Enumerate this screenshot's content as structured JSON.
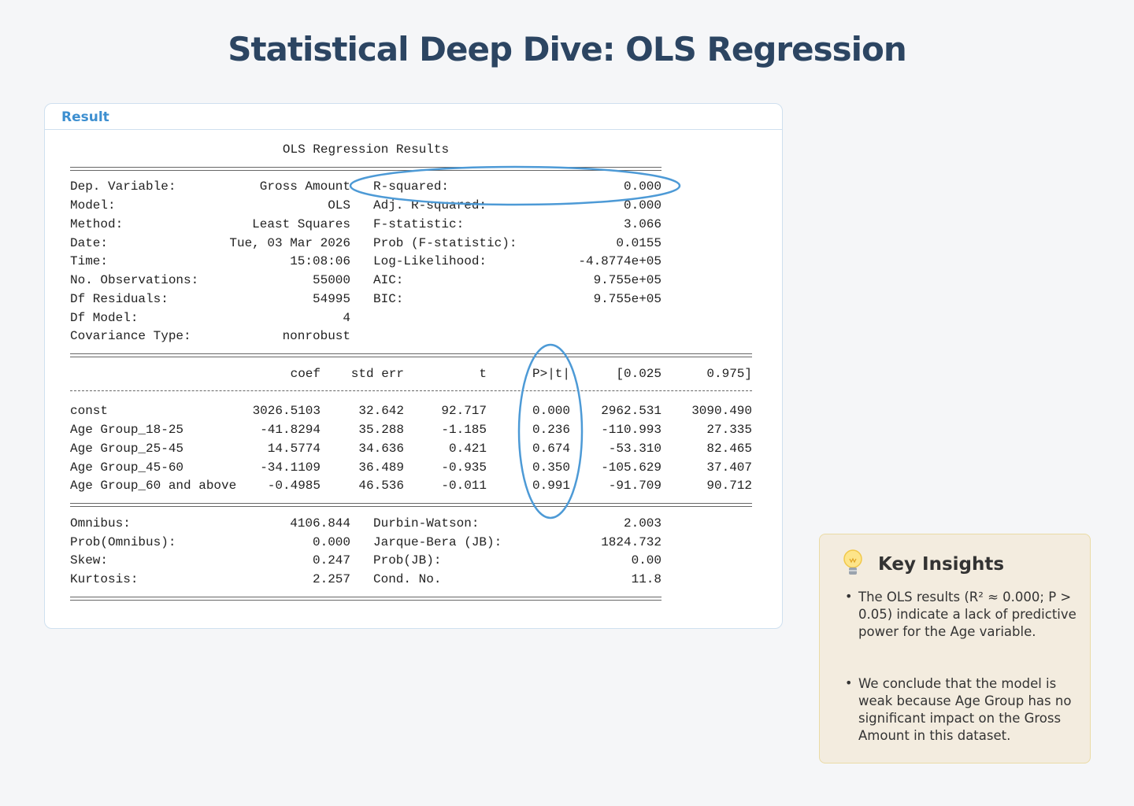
{
  "header": {
    "title": "Statistical Deep Dive: OLS Regression"
  },
  "result": {
    "tab": "Result",
    "title": "OLS Regression Results",
    "summary": [
      [
        "Dep. Variable:",
        "Gross Amount",
        "R-squared:",
        "0.000"
      ],
      [
        "Model:",
        "OLS",
        "Adj. R-squared:",
        "0.000"
      ],
      [
        "Method:",
        "Least Squares",
        "F-statistic:",
        "3.066"
      ],
      [
        "Date:",
        "Tue, 03 Mar 2026",
        "Prob (F-statistic):",
        "0.0155"
      ],
      [
        "Time:",
        "15:08:06",
        "Log-Likelihood:",
        "-4.8774e+05"
      ],
      [
        "No. Observations:",
        "55000",
        "AIC:",
        "9.755e+05"
      ],
      [
        "Df Residuals:",
        "54995",
        "BIC:",
        "9.755e+05"
      ],
      [
        "Df Model:",
        "4"
      ],
      [
        "Covariance Type:",
        "nonrobust"
      ]
    ],
    "coef_header": [
      "coef",
      "std err",
      "t",
      "P>|t|",
      "[0.025",
      "0.975]"
    ],
    "coef_rows": [
      [
        "const",
        "3026.5103",
        "32.642",
        "92.717",
        "0.000",
        "2962.531",
        "3090.490"
      ],
      [
        "Age Group_18-25",
        "-41.8294",
        "35.288",
        "-1.185",
        "0.236",
        "-110.993",
        "27.335"
      ],
      [
        "Age Group_25-45",
        "14.5774",
        "34.636",
        "0.421",
        "0.674",
        "-53.310",
        "82.465"
      ],
      [
        "Age Group_45-60",
        "-34.1109",
        "36.489",
        "-0.935",
        "0.350",
        "-105.629",
        "37.407"
      ],
      [
        "Age Group_60 and above",
        "-0.4985",
        "46.536",
        "-0.011",
        "0.991",
        "-91.709",
        "90.712"
      ]
    ],
    "diagnostics": [
      [
        "Omnibus:",
        "4106.844",
        "Durbin-Watson:",
        "2.003"
      ],
      [
        "Prob(Omnibus):",
        "0.000",
        "Jarque-Bera (JB):",
        "1824.732"
      ],
      [
        "Skew:",
        "0.247",
        "Prob(JB):",
        "0.00"
      ],
      [
        "Kurtosis:",
        "2.257",
        "Cond. No.",
        "11.8"
      ]
    ]
  },
  "insights": {
    "title": "Key Insights",
    "bullets": [
      "The OLS results (R² ≈ 0.000; P > 0.05) indicate a lack of predictive power for the Age variable.",
      "We conclude that the model is weak because Age Group has no significant impact on the Gross Amount in this dataset."
    ]
  }
}
